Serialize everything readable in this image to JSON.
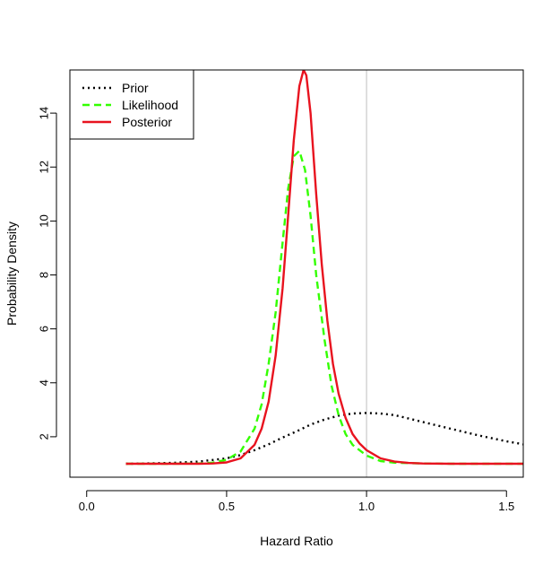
{
  "chart_data": {
    "type": "line",
    "title": "",
    "xlabel": "Hazard Ratio",
    "ylabel": "Probability Density",
    "xlim": [
      -0.06,
      1.56
    ],
    "ylim": [
      0.5,
      15.6
    ],
    "xticks": [
      0.0,
      0.5,
      1.0,
      1.5
    ],
    "xtick_labels": [
      "0.0",
      "0.5",
      "1.0",
      "1.5"
    ],
    "yticks": [
      2,
      4,
      6,
      8,
      10,
      12,
      14
    ],
    "ytick_labels": [
      "2",
      "4",
      "6",
      "8",
      "10",
      "12",
      "14"
    ],
    "grid": false,
    "legend_position": "top-left",
    "reference_line": {
      "x": 1.0,
      "color": "#bebebe"
    },
    "series": [
      {
        "name": "Prior",
        "color": "#000000",
        "dash": "dotted",
        "x": [
          0.14,
          0.2,
          0.3,
          0.4,
          0.5,
          0.55,
          0.6,
          0.65,
          0.7,
          0.75,
          0.8,
          0.85,
          0.9,
          0.95,
          1.0,
          1.05,
          1.1,
          1.15,
          1.2,
          1.3,
          1.4,
          1.5,
          1.56
        ],
        "y": [
          1.0,
          1.01,
          1.03,
          1.08,
          1.2,
          1.32,
          1.5,
          1.72,
          1.97,
          2.2,
          2.45,
          2.64,
          2.78,
          2.86,
          2.88,
          2.86,
          2.8,
          2.68,
          2.55,
          2.3,
          2.05,
          1.83,
          1.72
        ]
      },
      {
        "name": "Likelihood",
        "color": "#33ff00",
        "dash": "dashed",
        "x": [
          0.14,
          0.3,
          0.4,
          0.45,
          0.5,
          0.55,
          0.6,
          0.625,
          0.65,
          0.675,
          0.7,
          0.72,
          0.74,
          0.76,
          0.78,
          0.8,
          0.82,
          0.85,
          0.875,
          0.9,
          0.925,
          0.95,
          1.0,
          1.05,
          1.1,
          1.2,
          1.3,
          1.4,
          1.56
        ],
        "y": [
          1.0,
          1.0,
          1.01,
          1.04,
          1.15,
          1.45,
          2.3,
          3.2,
          4.7,
          6.6,
          9.2,
          11.2,
          12.4,
          12.6,
          11.9,
          10.2,
          8.0,
          5.6,
          3.9,
          2.8,
          2.1,
          1.7,
          1.3,
          1.1,
          1.04,
          1.01,
          1.0,
          1.0,
          1.0
        ]
      },
      {
        "name": "Posterior",
        "color": "#e8131f",
        "dash": "solid",
        "x": [
          0.14,
          0.3,
          0.4,
          0.45,
          0.5,
          0.55,
          0.6,
          0.625,
          0.65,
          0.675,
          0.7,
          0.72,
          0.74,
          0.76,
          0.775,
          0.785,
          0.8,
          0.82,
          0.84,
          0.86,
          0.88,
          0.9,
          0.925,
          0.95,
          0.975,
          1.0,
          1.05,
          1.1,
          1.15,
          1.2,
          1.3,
          1.4,
          1.56
        ],
        "y": [
          1.0,
          1.0,
          1.0,
          1.01,
          1.05,
          1.2,
          1.7,
          2.3,
          3.3,
          5.0,
          7.5,
          10.2,
          13.0,
          15.0,
          15.6,
          15.4,
          14.0,
          11.0,
          8.4,
          6.3,
          4.7,
          3.6,
          2.7,
          2.1,
          1.75,
          1.5,
          1.2,
          1.08,
          1.03,
          1.01,
          1.0,
          1.0,
          1.0
        ]
      }
    ]
  }
}
